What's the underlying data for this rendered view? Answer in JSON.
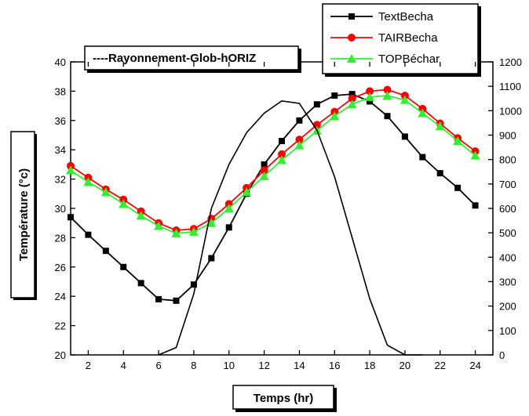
{
  "chart_data": {
    "type": "line",
    "title": "",
    "xlabel": "Temps (hr)",
    "ylabel": "Température (°c)",
    "xlim": [
      1,
      25
    ],
    "ylim": [
      20,
      40
    ],
    "y2lim": [
      0,
      1200
    ],
    "x_ticks": [
      2,
      4,
      6,
      8,
      10,
      12,
      14,
      16,
      18,
      20,
      22,
      24
    ],
    "y_ticks": [
      20,
      22,
      24,
      26,
      28,
      30,
      32,
      34,
      36,
      38,
      40
    ],
    "y2_ticks": [
      0,
      100,
      200,
      300,
      400,
      500,
      600,
      700,
      800,
      900,
      1000,
      1100,
      1200
    ],
    "grid": false,
    "legend_position": "top-right",
    "series": [
      {
        "name": "TextBecha",
        "color": "#000000",
        "marker": "square",
        "axis": "left",
        "x": [
          1,
          2,
          3,
          4,
          5,
          6,
          7,
          8,
          9,
          10,
          11,
          12,
          13,
          14,
          15,
          16,
          17,
          18,
          19,
          20,
          21,
          22,
          23,
          24
        ],
        "values": [
          29.4,
          28.2,
          27.1,
          26.0,
          24.9,
          23.8,
          23.7,
          24.8,
          26.6,
          28.7,
          31.0,
          33.0,
          34.6,
          36.0,
          37.1,
          37.7,
          37.8,
          37.3,
          36.3,
          34.9,
          33.5,
          32.4,
          31.4,
          30.2
        ]
      },
      {
        "name": "TAIRBecha",
        "color": "#ff0000",
        "marker": "circle",
        "axis": "left",
        "x": [
          1,
          2,
          3,
          4,
          5,
          6,
          7,
          8,
          9,
          10,
          11,
          12,
          13,
          14,
          15,
          16,
          17,
          18,
          19,
          20,
          21,
          22,
          23,
          24
        ],
        "values": [
          32.9,
          32.1,
          31.3,
          30.6,
          29.8,
          29.0,
          28.5,
          28.6,
          29.3,
          30.3,
          31.4,
          32.6,
          33.7,
          34.7,
          35.7,
          36.6,
          37.5,
          38.0,
          38.1,
          37.7,
          36.8,
          35.8,
          34.8,
          33.9
        ]
      },
      {
        "name": "TOPBéchar",
        "color": "#33ee33",
        "marker": "triangle",
        "axis": "left",
        "x": [
          1,
          2,
          3,
          4,
          5,
          6,
          7,
          8,
          9,
          10,
          11,
          12,
          13,
          14,
          15,
          16,
          17,
          18,
          19,
          20,
          21,
          22,
          23,
          24
        ],
        "values": [
          32.6,
          31.8,
          31.1,
          30.3,
          29.5,
          28.8,
          28.3,
          28.4,
          29.0,
          30.0,
          31.1,
          32.2,
          33.3,
          34.3,
          35.3,
          36.3,
          37.1,
          37.6,
          37.7,
          37.4,
          36.5,
          35.6,
          34.6,
          33.6
        ]
      },
      {
        "name": "----Rayonnement-Glob-hORIZ",
        "color": "#000000",
        "marker": "none",
        "axis": "right",
        "x": [
          6,
          7,
          8,
          9,
          10,
          11,
          12,
          13,
          14,
          15,
          16,
          17,
          18,
          19,
          20,
          21
        ],
        "values": [
          0,
          30,
          250,
          600,
          780,
          910,
          990,
          1040,
          1030,
          920,
          730,
          480,
          230,
          40,
          0,
          0
        ]
      }
    ]
  }
}
